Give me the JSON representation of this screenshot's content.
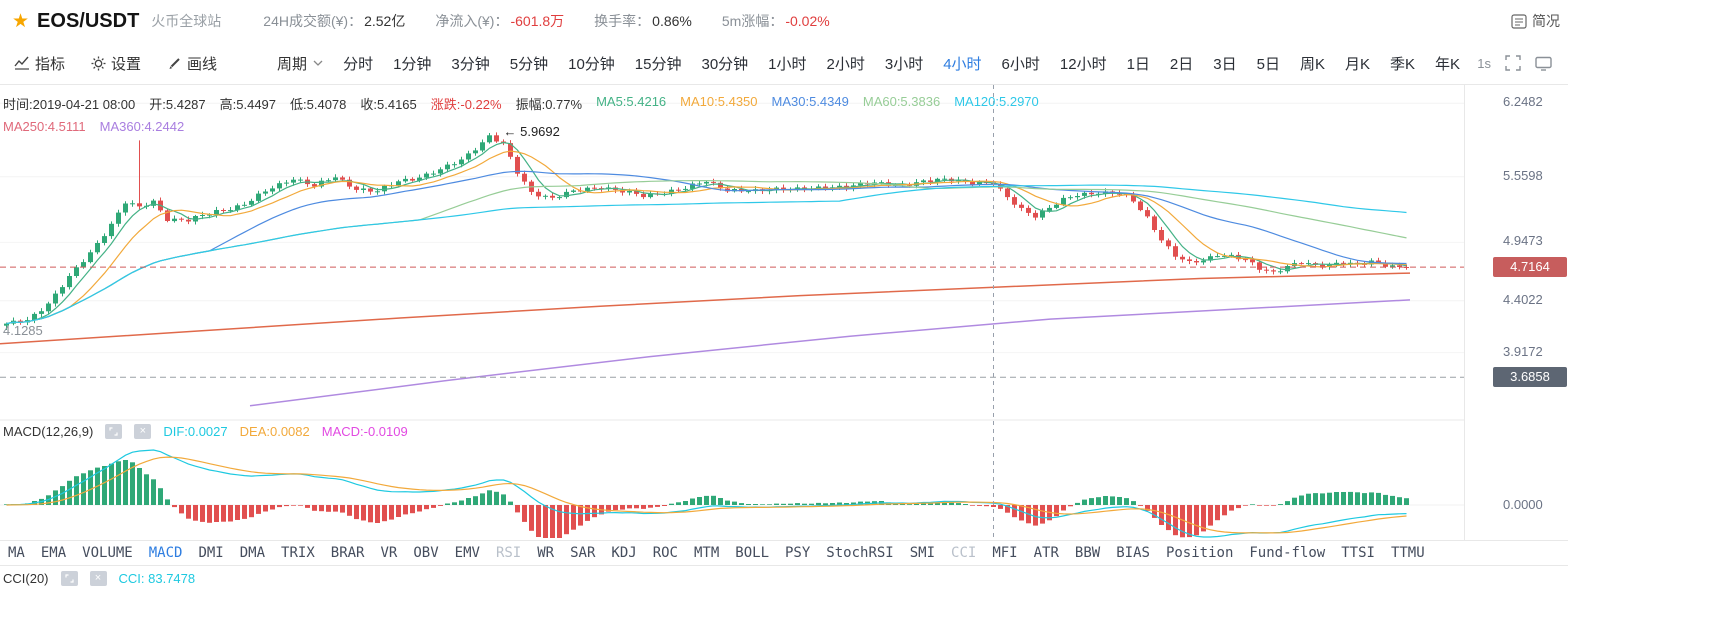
{
  "icons": {
    "star": "★",
    "close": "×"
  },
  "header": {
    "symbol": "EOS/USDT",
    "exchange": "火币全球站",
    "stats": [
      {
        "label": "24H成交额(¥)：",
        "value": "2.52亿",
        "value_color": "#333333"
      },
      {
        "label": "净流入(¥)：",
        "value": "-601.8万",
        "value_color": "#e03e3e"
      },
      {
        "label": "换手率：",
        "value": "0.86%",
        "value_color": "#333333"
      },
      {
        "label": "5m涨幅：",
        "value": "-0.02%",
        "value_color": "#e03e3e"
      }
    ],
    "brief_label": "简况"
  },
  "toolbar": {
    "tools": [
      {
        "name": "indicators",
        "label": "指标"
      },
      {
        "name": "settings",
        "label": "设置"
      },
      {
        "name": "draw",
        "label": "画线"
      }
    ],
    "period_label": "周期",
    "intervals": [
      "分时",
      "1分钟",
      "3分钟",
      "5分钟",
      "10分钟",
      "15分钟",
      "30分钟",
      "1小时",
      "2小时",
      "3小时",
      "4小时",
      "6小时",
      "12小时",
      "1日",
      "2日",
      "3日",
      "5日",
      "周K",
      "月K",
      "季K",
      "年K"
    ],
    "active_interval": "4小时",
    "right_label": "1s"
  },
  "info_bar": {
    "line1": [
      {
        "text": "时间:2019-04-21 08:00",
        "color": "#333333"
      },
      {
        "text": "开:5.4287",
        "color": "#333333"
      },
      {
        "text": "高:5.4497",
        "color": "#333333"
      },
      {
        "text": "低:5.4078",
        "color": "#333333"
      },
      {
        "text": "收:5.4165",
        "color": "#333333"
      },
      {
        "text": "涨跌:-0.22%",
        "color": "#e03e3e"
      },
      {
        "text": "振幅:0.77%",
        "color": "#333333"
      },
      {
        "text": "MA5:5.4216",
        "color": "#44b286"
      },
      {
        "text": "MA10:5.4350",
        "color": "#f2a93b"
      },
      {
        "text": "MA30:5.4349",
        "color": "#4e8be0"
      },
      {
        "text": "MA60:5.3836",
        "color": "#97cd97"
      },
      {
        "text": "MA120:5.2970",
        "color": "#2fc8e8"
      }
    ],
    "line2": [
      {
        "text": "MA250:4.5111",
        "color": "#e0697a"
      },
      {
        "text": "MA360:4.2442",
        "color": "#a97ee0"
      }
    ]
  },
  "chart_data": {
    "type": "candlestick",
    "symbol": "EOS/USDT",
    "interval": "4小时",
    "y_axis_labels": [
      6.2482,
      5.5598,
      4.9473,
      4.4022,
      3.9172
    ],
    "last_price": 4.7164,
    "support_level": 3.6858,
    "peak_annotation": {
      "text": "← 5.9692",
      "price": 5.9692
    },
    "low_annotation": {
      "text": "4.1285",
      "price": 4.1285
    },
    "macd_zero_label": "0.0000",
    "crosshair_index": 141,
    "price_anchors": [
      [
        0,
        4.18
      ],
      [
        3,
        4.22
      ],
      [
        6,
        4.38
      ],
      [
        9,
        4.62
      ],
      [
        12,
        4.85
      ],
      [
        15,
        5.12
      ],
      [
        17,
        5.32
      ],
      [
        19,
        5.27
      ],
      [
        21,
        5.33
      ],
      [
        23,
        5.17
      ],
      [
        26,
        5.15
      ],
      [
        30,
        5.24
      ],
      [
        34,
        5.3
      ],
      [
        38,
        5.46
      ],
      [
        41,
        5.55
      ],
      [
        44,
        5.47
      ],
      [
        47,
        5.56
      ],
      [
        50,
        5.45
      ],
      [
        53,
        5.42
      ],
      [
        56,
        5.52
      ],
      [
        59,
        5.56
      ],
      [
        62,
        5.62
      ],
      [
        65,
        5.72
      ],
      [
        67,
        5.83
      ],
      [
        69,
        5.94
      ],
      [
        71,
        5.86
      ],
      [
        73,
        5.6
      ],
      [
        75,
        5.42
      ],
      [
        78,
        5.36
      ],
      [
        82,
        5.44
      ],
      [
        85,
        5.47
      ],
      [
        88,
        5.42
      ],
      [
        91,
        5.38
      ],
      [
        94,
        5.42
      ],
      [
        97,
        5.45
      ],
      [
        100,
        5.52
      ],
      [
        103,
        5.44
      ],
      [
        107,
        5.42
      ],
      [
        111,
        5.46
      ],
      [
        115,
        5.44
      ],
      [
        119,
        5.47
      ],
      [
        123,
        5.5
      ],
      [
        127,
        5.48
      ],
      [
        131,
        5.52
      ],
      [
        135,
        5.53
      ],
      [
        138,
        5.51
      ],
      [
        141,
        5.5
      ],
      [
        143,
        5.36
      ],
      [
        145,
        5.26
      ],
      [
        147,
        5.2
      ],
      [
        149,
        5.27
      ],
      [
        151,
        5.34
      ],
      [
        153,
        5.39
      ],
      [
        156,
        5.42
      ],
      [
        159,
        5.4
      ],
      [
        161,
        5.33
      ],
      [
        163,
        5.18
      ],
      [
        165,
        4.98
      ],
      [
        167,
        4.82
      ],
      [
        169,
        4.75
      ],
      [
        171,
        4.78
      ],
      [
        173,
        4.84
      ],
      [
        175,
        4.82
      ],
      [
        177,
        4.78
      ],
      [
        179,
        4.7
      ],
      [
        181,
        4.67
      ],
      [
        183,
        4.73
      ],
      [
        185,
        4.76
      ],
      [
        187,
        4.72
      ],
      [
        189,
        4.74
      ],
      [
        191,
        4.77
      ],
      [
        193,
        4.74
      ],
      [
        195,
        4.76
      ],
      [
        197,
        4.73
      ],
      [
        200,
        4.7164
      ]
    ],
    "wick_overrides": {
      "19": 5.9,
      "69": 5.9692
    },
    "low_overrides": {
      "0": 4.1285
    },
    "ma250_path": [
      [
        0,
        4.0
      ],
      [
        200,
        4.12
      ],
      [
        400,
        4.24
      ],
      [
        600,
        4.35
      ],
      [
        800,
        4.45
      ],
      [
        1000,
        4.53
      ],
      [
        1200,
        4.61
      ],
      [
        1410,
        4.66
      ]
    ],
    "ma360_path": [
      [
        250,
        3.42
      ],
      [
        450,
        3.66
      ],
      [
        650,
        3.88
      ],
      [
        850,
        4.07
      ],
      [
        1050,
        4.23
      ],
      [
        1250,
        4.33
      ],
      [
        1410,
        4.41
      ]
    ],
    "colors": {
      "up": "#2fa877",
      "down": "#e14f4f",
      "ma5": "#44b286",
      "ma10": "#f2a93b",
      "ma30": "#4e8be0",
      "ma60": "#97cd97",
      "ma120": "#2fc8e8",
      "ma250": "#e0694a",
      "ma360": "#b08ae0",
      "dif": "#1ec9e0",
      "dea": "#f2a93b",
      "macd_value": "#e24ae2",
      "accent_blue": "#2e7de0",
      "price_badge_bg": "#c75d5d",
      "support_badge_bg": "#5d6673",
      "tab_default": "#454d5d",
      "tab_muted": "#b9c0ca"
    }
  },
  "macd_panel": {
    "title": "MACD(12,26,9)",
    "dif_label": "DIF:0.0027",
    "dea_label": "DEA:0.0082",
    "macd_label": "MACD:-0.0109"
  },
  "tabs": {
    "items": [
      "MA",
      "EMA",
      "VOLUME",
      "MACD",
      "DMI",
      "DMA",
      "TRIX",
      "BRAR",
      "VR",
      "OBV",
      "EMV",
      "RSI",
      "WR",
      "SAR",
      "KDJ",
      "ROC",
      "MTM",
      "BOLL",
      "PSY",
      "StochRSI",
      "SMI",
      "CCI",
      "MFI",
      "ATR",
      "BBW",
      "BIAS",
      "Position",
      "Fund-flow",
      "TTSI",
      "TTMU"
    ],
    "active": "MACD",
    "muted": [
      "RSI",
      "CCI"
    ]
  },
  "bottom_panel": {
    "title": "CCI(20)",
    "value": "CCI: 83.7478",
    "value_color": "#1ec9e0"
  }
}
